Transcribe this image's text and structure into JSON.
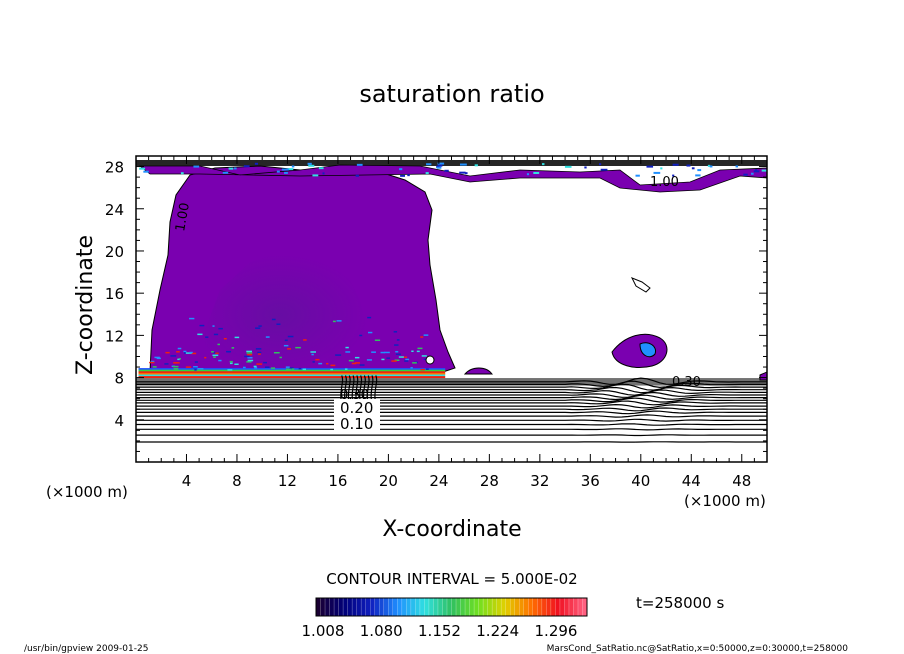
{
  "chart_data": {
    "type": "contour",
    "title": "saturation ratio",
    "xlabel": "X-coordinate",
    "ylabel": "Z-coordinate",
    "x_unit": "(×1000 m)",
    "y_unit": "(×1000 m)",
    "xlim": [
      0,
      50
    ],
    "ylim": [
      0,
      29
    ],
    "x_ticks": [
      4,
      8,
      12,
      16,
      20,
      24,
      28,
      32,
      36,
      40,
      44,
      48
    ],
    "y_ticks": [
      4,
      8,
      12,
      16,
      20,
      24,
      28
    ],
    "contour_interval": "CONTOUR INTERVAL = 5.000E-02",
    "contour_labels": [
      "0.10",
      "0.20",
      "0.30",
      "0.30",
      "1.00",
      "1.00"
    ],
    "colorbar": {
      "ticks": [
        "1.008",
        "1.080",
        "1.152",
        "1.224",
        "1.296"
      ],
      "colors": [
        "#1a0033",
        "#00007a",
        "#1020c0",
        "#2090ff",
        "#30e0e0",
        "#30c060",
        "#70e020",
        "#e0d000",
        "#ff7000",
        "#f01020",
        "#ff6080"
      ]
    },
    "fill_colors": {
      "cloud": "#7a00b0",
      "cloud_core": "#6a10a8",
      "base_band_red": "#f02010",
      "base_band_green": "#30d040",
      "base_band_blue": "#2050ff"
    },
    "time_label": "t=258000 s"
  },
  "footer": {
    "left": "/usr/bin/gpview  2009-01-25",
    "right": "MarsCond_SatRatio.nc@SatRatio,x=0:50000,z=0:30000,t=258000"
  }
}
